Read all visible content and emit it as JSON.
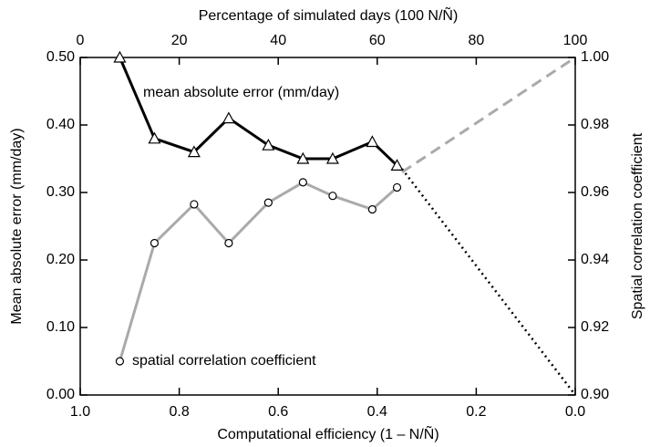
{
  "chart_data": {
    "type": "line",
    "xlabel": "Computational efficiency (1 – N/Ñ)",
    "x2label": "Percentage of simulated days (100 N/Ñ)",
    "ylabel": "Mean absolute error (mm/day)",
    "y2label": "Spatial correlation coefficient",
    "x": [
      0.92,
      0.85,
      0.77,
      0.7,
      0.62,
      0.55,
      0.49,
      0.41,
      0.36
    ],
    "xlim": [
      1.0,
      0.0
    ],
    "xticks": [
      {
        "value": 1.0,
        "label": "1.0"
      },
      0.8,
      0.6,
      0.4,
      0.2,
      {
        "value": 0.0,
        "label": "0.0"
      }
    ],
    "x2lim": [
      0,
      100
    ],
    "x2ticks": [
      0,
      20,
      40,
      60,
      80,
      100
    ],
    "ylim": [
      0,
      0.5
    ],
    "yticks": [
      {
        "value": 0,
        "label": "0.00"
      },
      {
        "value": 0.1,
        "label": "0.10"
      },
      {
        "value": 0.2,
        "label": "0.20"
      },
      {
        "value": 0.3,
        "label": "0.30"
      },
      {
        "value": 0.4,
        "label": "0.40"
      },
      {
        "value": 0.5,
        "label": "0.50"
      }
    ],
    "y2lim": [
      0.9,
      1.0
    ],
    "y2ticks": [
      {
        "value": 0.9,
        "label": "0.90"
      },
      0.92,
      0.94,
      0.96,
      0.98,
      {
        "value": 1.0,
        "label": "1.00"
      }
    ],
    "series": [
      {
        "name": "mean absolute error (mm/day)",
        "color": "#000000",
        "marker": "triangle",
        "values": [
          0.5,
          0.38,
          0.36,
          0.41,
          0.37,
          0.35,
          0.35,
          0.375,
          0.34
        ]
      },
      {
        "name": "spatial correlation coefficient",
        "color": "#aaaaaa",
        "marker": "circle",
        "axis": "y2",
        "values": [
          0.91,
          0.945,
          0.9565,
          0.945,
          0.957,
          0.963,
          0.959,
          0.955,
          0.9615
        ]
      }
    ],
    "extrapolations": [
      {
        "x": [
          0.35,
          0.0
        ],
        "values": [
          0.335,
          0.0
        ],
        "color": "#000000",
        "dash": "dotted"
      },
      {
        "x": [
          0.35,
          0.0
        ],
        "values": [
          0.966,
          1.0
        ],
        "color": "#aaaaaa",
        "dash": "dashed",
        "axis": "y2"
      }
    ]
  }
}
